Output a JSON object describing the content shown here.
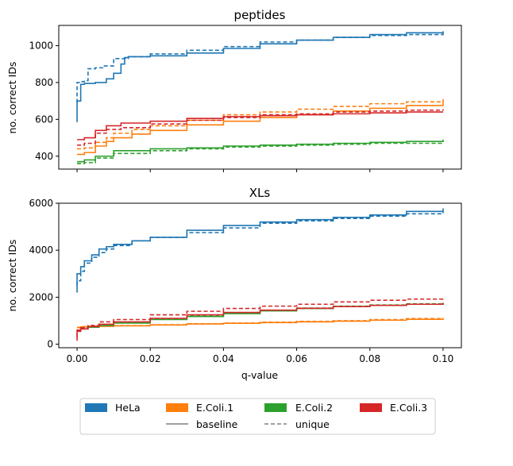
{
  "chart_data": [
    {
      "type": "line",
      "title": "peptides",
      "xlabel": "",
      "ylabel": "no. correct IDs",
      "xlim": [
        -0.005,
        0.105
      ],
      "ylim": [
        330,
        1110
      ],
      "xticks": [
        0.0,
        0.02,
        0.04,
        0.06,
        0.08,
        0.1
      ],
      "xtick_labels_shown": false,
      "yticks": [
        400,
        600,
        800,
        1000
      ],
      "ytick_labels": [
        "400",
        "600",
        "800",
        "1000"
      ],
      "grid": false,
      "series": [
        {
          "name": "HeLa",
          "variant": "baseline",
          "color": "#1f77b4",
          "x": [
            0,
            0,
            0.001,
            0.001,
            0.002,
            0.002,
            0.005,
            0.008,
            0.01,
            0.012,
            0.013,
            0.014,
            0.02,
            0.03,
            0.04,
            0.05,
            0.06,
            0.07,
            0.08,
            0.09,
            0.1
          ],
          "y": [
            585,
            700,
            700,
            790,
            790,
            795,
            800,
            820,
            850,
            900,
            935,
            940,
            945,
            960,
            985,
            1010,
            1030,
            1045,
            1060,
            1070,
            1078
          ]
        },
        {
          "name": "HeLa",
          "variant": "unique",
          "color": "#1f77b4",
          "x": [
            0,
            0,
            0.001,
            0.002,
            0.003,
            0.005,
            0.007,
            0.01,
            0.014,
            0.02,
            0.03,
            0.04,
            0.05,
            0.06,
            0.07,
            0.08,
            0.09,
            0.1
          ],
          "y": [
            690,
            800,
            805,
            810,
            875,
            880,
            890,
            930,
            940,
            955,
            975,
            995,
            1020,
            1030,
            1045,
            1055,
            1060,
            1078
          ]
        },
        {
          "name": "E.Coli.1",
          "variant": "baseline",
          "color": "#ff7f0e",
          "x": [
            0,
            0.002,
            0.005,
            0.008,
            0.01,
            0.015,
            0.02,
            0.03,
            0.04,
            0.05,
            0.06,
            0.07,
            0.08,
            0.09,
            0.1
          ],
          "y": [
            410,
            420,
            455,
            480,
            500,
            520,
            540,
            570,
            590,
            610,
            625,
            645,
            660,
            675,
            695
          ]
        },
        {
          "name": "E.Coli.1",
          "variant": "unique",
          "color": "#ff7f0e",
          "x": [
            0,
            0.002,
            0.005,
            0.008,
            0.01,
            0.015,
            0.02,
            0.03,
            0.04,
            0.05,
            0.06,
            0.07,
            0.08,
            0.09,
            0.1
          ],
          "y": [
            440,
            445,
            475,
            500,
            525,
            545,
            565,
            595,
            625,
            640,
            655,
            670,
            685,
            695,
            710
          ]
        },
        {
          "name": "E.Coli.2",
          "variant": "baseline",
          "color": "#2ca02c",
          "x": [
            0,
            0.002,
            0.005,
            0.01,
            0.02,
            0.03,
            0.04,
            0.05,
            0.06,
            0.07,
            0.08,
            0.09,
            0.1
          ],
          "y": [
            370,
            380,
            400,
            430,
            440,
            445,
            455,
            460,
            465,
            470,
            475,
            480,
            490
          ]
        },
        {
          "name": "E.Coli.2",
          "variant": "unique",
          "color": "#2ca02c",
          "x": [
            0,
            0.002,
            0.005,
            0.01,
            0.02,
            0.03,
            0.04,
            0.05,
            0.06,
            0.07,
            0.08,
            0.09,
            0.1
          ],
          "y": [
            360,
            365,
            390,
            415,
            430,
            440,
            450,
            455,
            460,
            465,
            470,
            470,
            475
          ]
        },
        {
          "name": "E.Coli.3",
          "variant": "baseline",
          "color": "#d62728",
          "x": [
            0,
            0.002,
            0.005,
            0.008,
            0.012,
            0.02,
            0.03,
            0.04,
            0.05,
            0.06,
            0.07,
            0.08,
            0.09,
            0.1
          ],
          "y": [
            490,
            500,
            540,
            565,
            580,
            590,
            605,
            615,
            620,
            625,
            630,
            635,
            640,
            640
          ]
        },
        {
          "name": "E.Coli.3",
          "variant": "unique",
          "color": "#d62728",
          "x": [
            0,
            0.002,
            0.005,
            0.008,
            0.012,
            0.02,
            0.03,
            0.04,
            0.05,
            0.06,
            0.07,
            0.08,
            0.09,
            0.1
          ],
          "y": [
            460,
            470,
            525,
            545,
            555,
            575,
            595,
            610,
            625,
            630,
            640,
            645,
            650,
            655
          ]
        }
      ]
    },
    {
      "type": "line",
      "title": "XLs",
      "xlabel": "q-value",
      "ylabel": "no. correct IDs",
      "xlim": [
        -0.005,
        0.105
      ],
      "ylim": [
        -150,
        6000
      ],
      "xticks": [
        0.0,
        0.02,
        0.04,
        0.06,
        0.08,
        0.1
      ],
      "xtick_labels": [
        "0.00",
        "0.02",
        "0.04",
        "0.06",
        "0.08",
        "0.10"
      ],
      "yticks": [
        0,
        2000,
        4000,
        6000
      ],
      "ytick_labels": [
        "0",
        "2000",
        "4000",
        "6000"
      ],
      "grid": false,
      "series": [
        {
          "name": "HeLa",
          "variant": "baseline",
          "color": "#1f77b4",
          "x": [
            0,
            0,
            0.001,
            0.002,
            0.004,
            0.006,
            0.008,
            0.01,
            0.015,
            0.02,
            0.03,
            0.04,
            0.05,
            0.06,
            0.07,
            0.08,
            0.09,
            0.1
          ],
          "y": [
            2200,
            3000,
            3300,
            3550,
            3800,
            4050,
            4150,
            4250,
            4400,
            4550,
            4850,
            5050,
            5200,
            5300,
            5400,
            5500,
            5650,
            5780
          ]
        },
        {
          "name": "HeLa",
          "variant": "unique",
          "color": "#1f77b4",
          "x": [
            0,
            0,
            0.001,
            0.002,
            0.004,
            0.006,
            0.008,
            0.01,
            0.015,
            0.02,
            0.03,
            0.04,
            0.05,
            0.06,
            0.07,
            0.08,
            0.09,
            0.1
          ],
          "y": [
            2500,
            2700,
            3100,
            3450,
            3700,
            3900,
            4050,
            4200,
            4400,
            4550,
            4750,
            4950,
            5150,
            5250,
            5350,
            5450,
            5550,
            5650
          ]
        },
        {
          "name": "E.Coli.1",
          "variant": "baseline",
          "color": "#ff7f0e",
          "x": [
            0,
            0.001,
            0.005,
            0.01,
            0.02,
            0.03,
            0.04,
            0.05,
            0.06,
            0.07,
            0.08,
            0.09,
            0.1
          ],
          "y": [
            700,
            740,
            760,
            780,
            820,
            860,
            890,
            920,
            950,
            980,
            1020,
            1060,
            1100
          ]
        },
        {
          "name": "E.Coli.1",
          "variant": "unique",
          "color": "#ff7f0e",
          "x": [
            0,
            0.001,
            0.005,
            0.01,
            0.02,
            0.03,
            0.04,
            0.05,
            0.06,
            0.07,
            0.08,
            0.09,
            0.1
          ],
          "y": [
            720,
            750,
            770,
            790,
            830,
            870,
            900,
            940,
            970,
            1000,
            1050,
            1090,
            1120
          ]
        },
        {
          "name": "E.Coli.2",
          "variant": "baseline",
          "color": "#2ca02c",
          "x": [
            0,
            0.001,
            0.003,
            0.006,
            0.01,
            0.02,
            0.03,
            0.04,
            0.05,
            0.06,
            0.07,
            0.08,
            0.09,
            0.1
          ],
          "y": [
            550,
            650,
            720,
            800,
            900,
            1050,
            1180,
            1300,
            1420,
            1520,
            1600,
            1650,
            1700,
            1760
          ]
        },
        {
          "name": "E.Coli.2",
          "variant": "unique",
          "color": "#2ca02c",
          "x": [
            0,
            0.001,
            0.003,
            0.006,
            0.01,
            0.02,
            0.03,
            0.04,
            0.05,
            0.06,
            0.07,
            0.08,
            0.09,
            0.1
          ],
          "y": [
            600,
            700,
            760,
            830,
            920,
            1070,
            1200,
            1330,
            1440,
            1540,
            1620,
            1670,
            1720,
            1790
          ]
        },
        {
          "name": "E.Coli.3",
          "variant": "baseline",
          "color": "#d62728",
          "x": [
            0,
            0,
            0.001,
            0.003,
            0.006,
            0.01,
            0.02,
            0.03,
            0.04,
            0.05,
            0.06,
            0.07,
            0.08,
            0.09,
            0.1
          ],
          "y": [
            150,
            550,
            650,
            750,
            850,
            950,
            1100,
            1250,
            1350,
            1450,
            1530,
            1600,
            1650,
            1700,
            1760
          ]
        },
        {
          "name": "E.Coli.3",
          "variant": "unique",
          "color": "#d62728",
          "x": [
            0,
            0,
            0.001,
            0.003,
            0.006,
            0.01,
            0.02,
            0.03,
            0.04,
            0.05,
            0.06,
            0.07,
            0.08,
            0.09,
            0.1
          ],
          "y": [
            300,
            600,
            700,
            800,
            950,
            1050,
            1250,
            1400,
            1520,
            1620,
            1700,
            1800,
            1870,
            1920,
            1980
          ]
        }
      ]
    }
  ],
  "legend": {
    "placement": "bottom",
    "entries": [
      {
        "label": "HeLa",
        "kind": "patch",
        "color": "#1f77b4"
      },
      {
        "label": "E.Coli.1",
        "kind": "patch",
        "color": "#ff7f0e"
      },
      {
        "label": "E.Coli.2",
        "kind": "patch",
        "color": "#2ca02c"
      },
      {
        "label": "E.Coli.3",
        "kind": "patch",
        "color": "#d62728"
      },
      {
        "label": "baseline",
        "kind": "line-solid",
        "color": "#808080"
      },
      {
        "label": "unique",
        "kind": "line-dashed",
        "color": "#808080"
      }
    ]
  }
}
